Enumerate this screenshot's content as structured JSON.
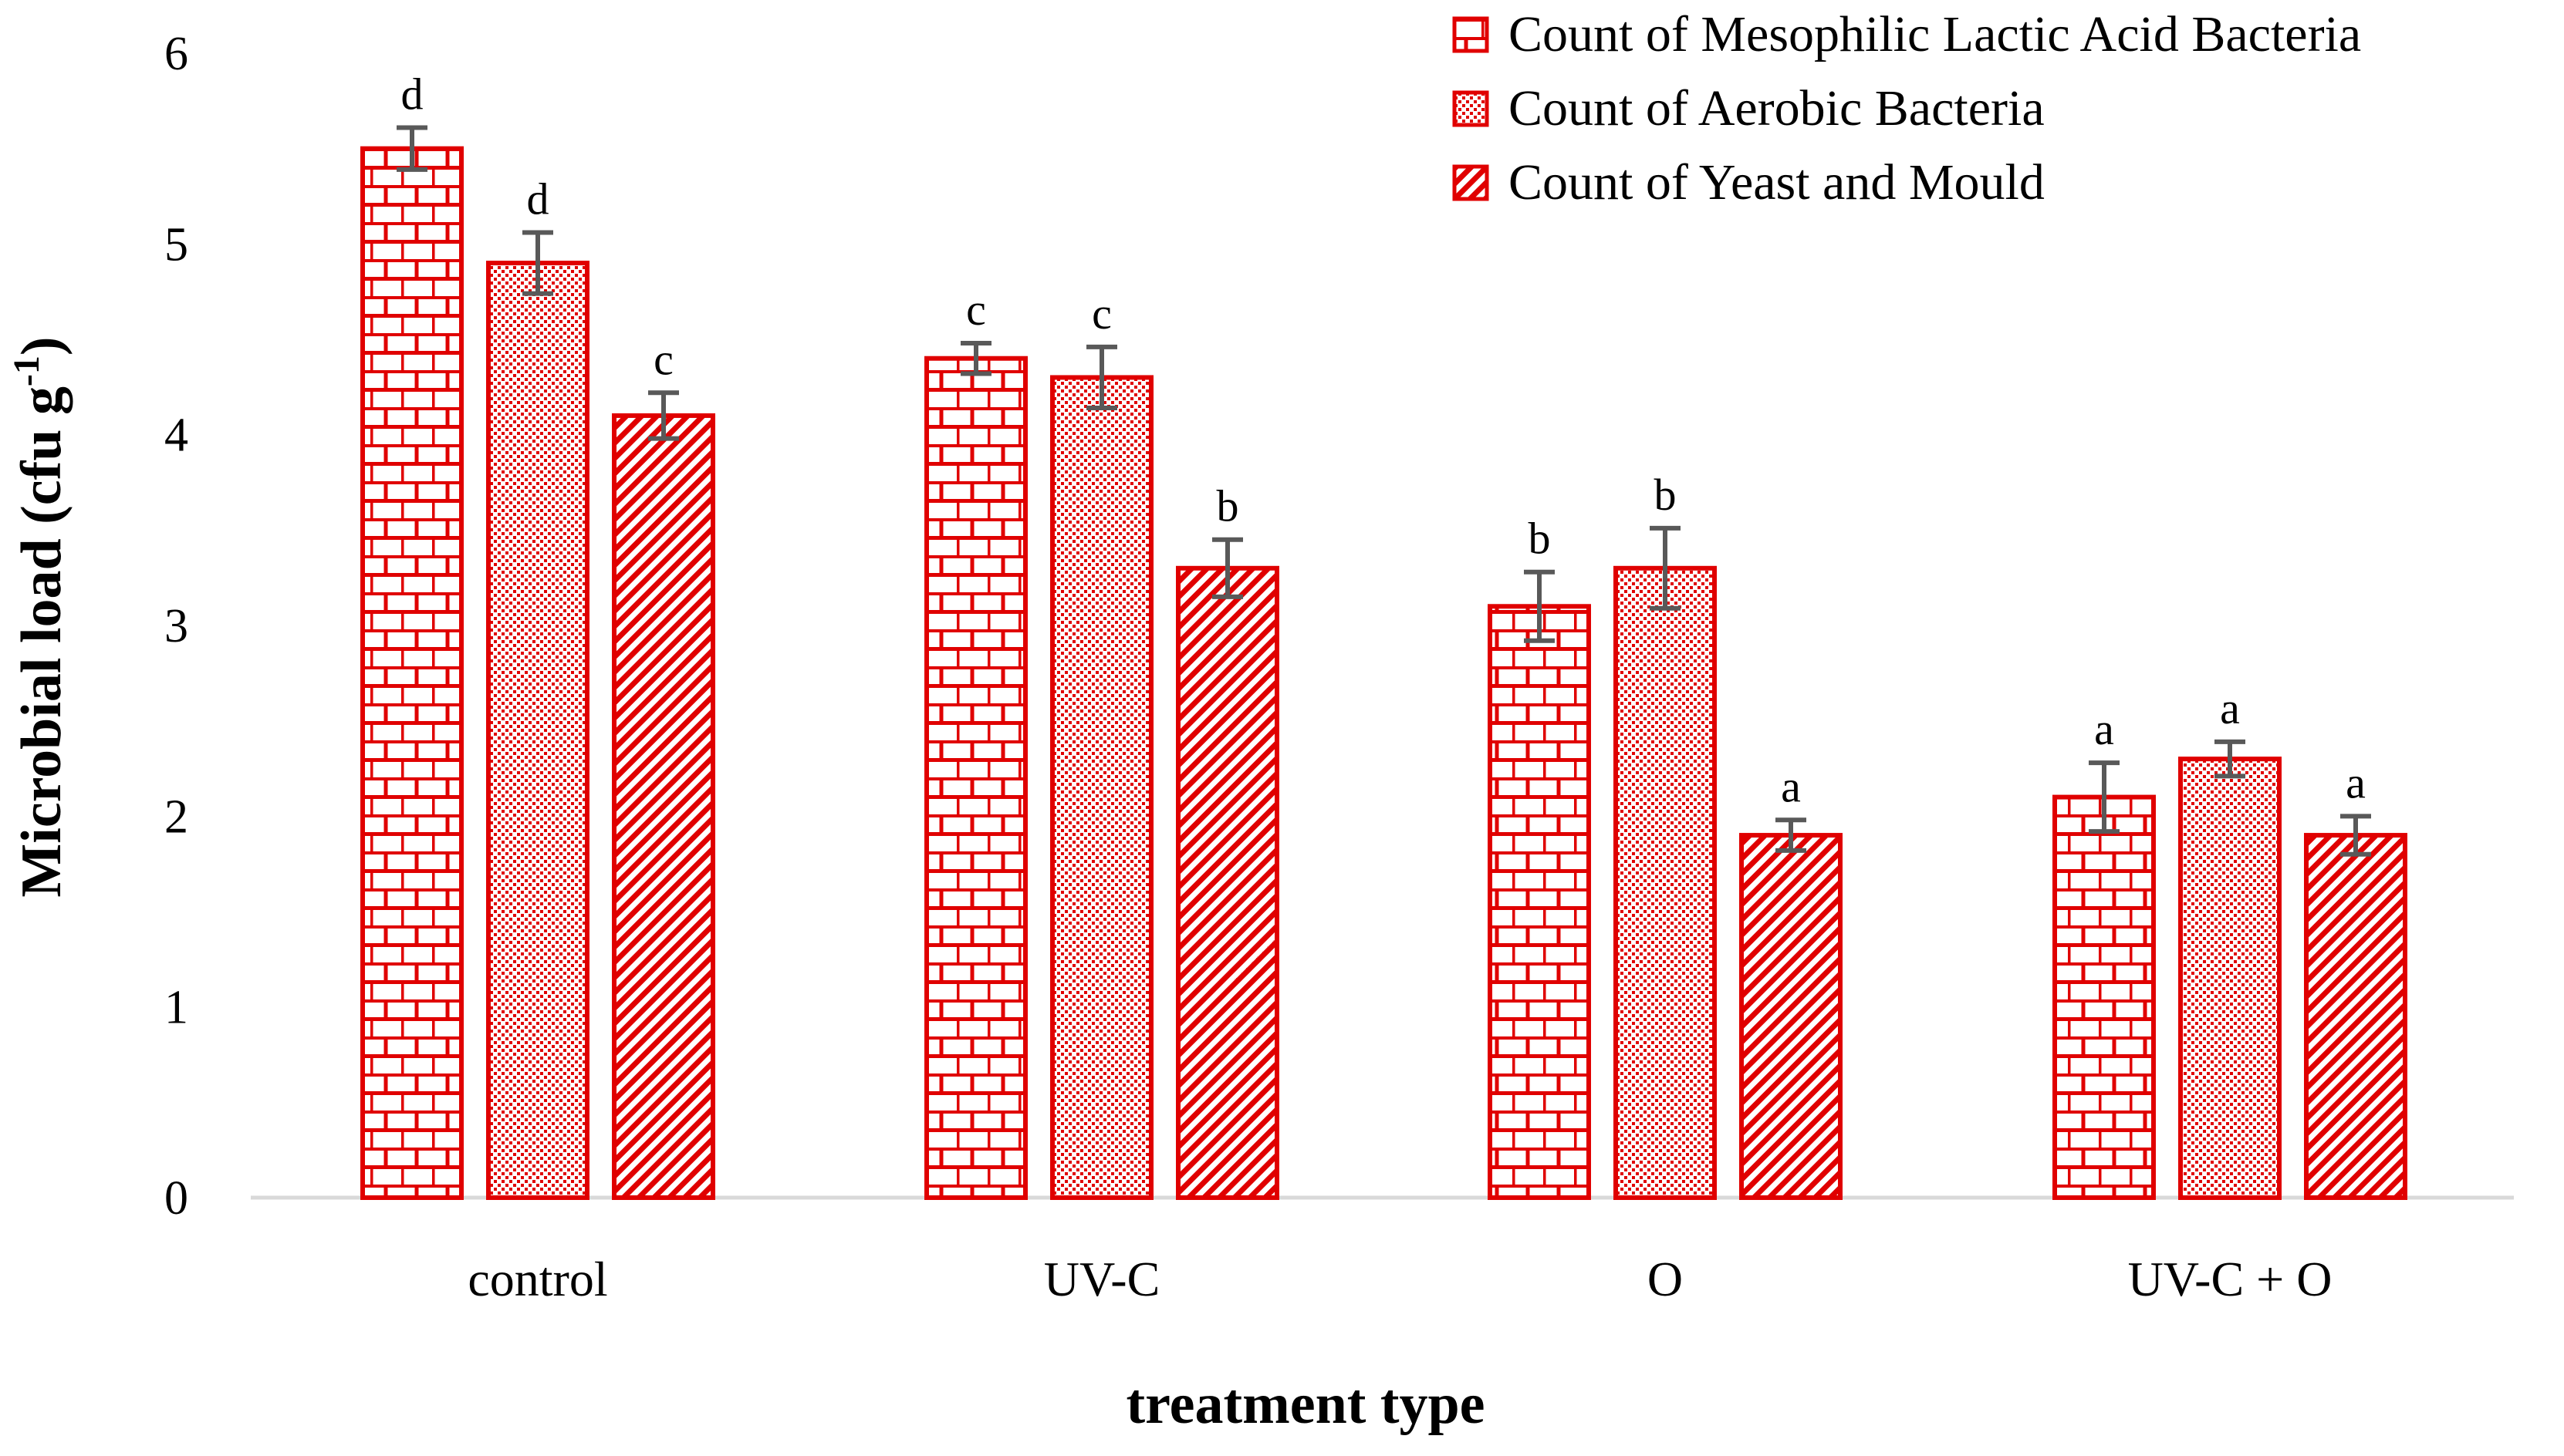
{
  "chart_data": {
    "type": "bar",
    "title": "",
    "xlabel": "treatment type",
    "ylabel_main": "Microbial load (cfu g",
    "ylabel_sup": "-1",
    "ylabel_close": ")",
    "ylim": [
      0,
      6
    ],
    "yticks": [
      "0",
      "1",
      "2",
      "3",
      "4",
      "5",
      "6"
    ],
    "grid": false,
    "legend_position": "top-right",
    "categories": [
      "control",
      "UV-C",
      "O",
      "UV-C + O"
    ],
    "series": [
      {
        "name": "Count of Mesophilic Lactic Acid Bacteria",
        "pattern": "brick",
        "values": [
          5.5,
          4.4,
          3.1,
          2.1
        ],
        "errors": [
          0.11,
          0.08,
          0.18,
          0.18
        ],
        "letters": [
          "d",
          "c",
          "b",
          "a"
        ]
      },
      {
        "name": "Count of Aerobic Bacteria",
        "pattern": "dots",
        "values": [
          4.9,
          4.3,
          3.3,
          2.3
        ],
        "errors": [
          0.16,
          0.16,
          0.21,
          0.09
        ],
        "letters": [
          "d",
          "c",
          "b",
          "a"
        ]
      },
      {
        "name": "Count of Yeast and Mould",
        "pattern": "diagonal",
        "values": [
          4.1,
          3.3,
          1.9,
          1.9
        ],
        "errors": [
          0.12,
          0.15,
          0.08,
          0.1
        ],
        "letters": [
          "c",
          "b",
          "a",
          "a"
        ]
      }
    ],
    "colors": {
      "bar_stroke": "#e00000",
      "pattern": "#e00000",
      "bar_bg": "#ffffff",
      "error_bar": "#595959",
      "axis": "#d9d9d9"
    }
  }
}
